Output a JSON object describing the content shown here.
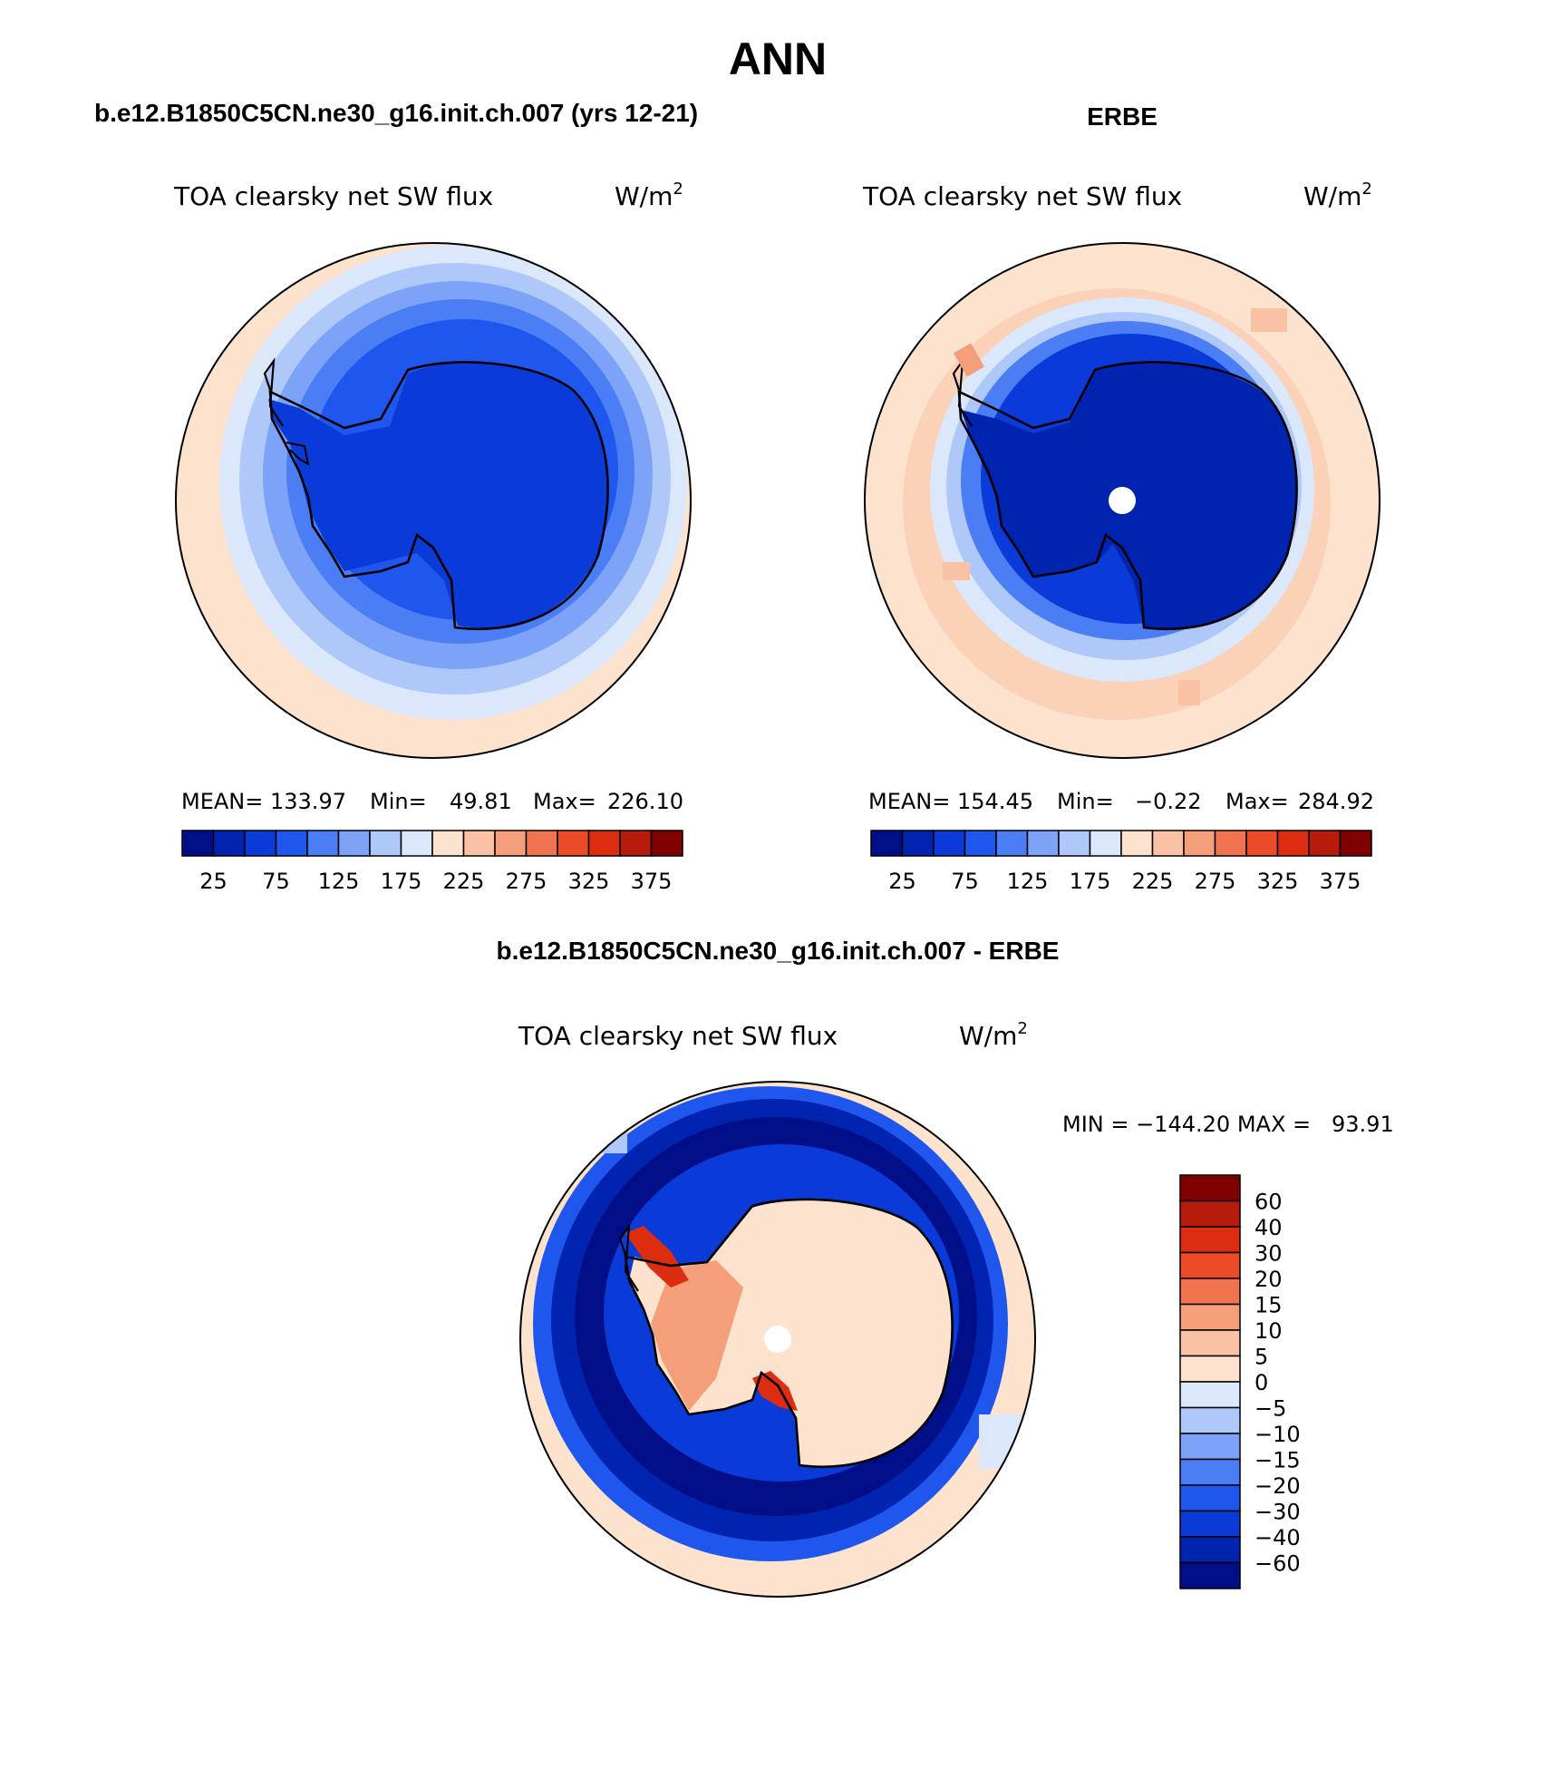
{
  "figure": {
    "season": "ANN",
    "panels": [
      {
        "id": "model",
        "case_title": "b.e12.B1850C5CN.ne30_g16.init.ch.007 (yrs 12-21)",
        "variable": "TOA clearsky net SW flux",
        "units_base": "W/m",
        "units_exp": "2",
        "mean_label": "MEAN=",
        "mean": "133.97",
        "min_label": "Min=",
        "min": "49.81",
        "max_label": "Max=",
        "max": "226.10",
        "colorbar_ticks": [
          "25",
          "75",
          "125",
          "175",
          "225",
          "275",
          "325",
          "375"
        ]
      },
      {
        "id": "obs",
        "case_title": "ERBE",
        "variable": "TOA clearsky net SW flux",
        "units_base": "W/m",
        "units_exp": "2",
        "mean_label": "MEAN=",
        "mean": "154.45",
        "min_label": "Min=",
        "min": "−0.22",
        "max_label": "Max=",
        "max": "284.92",
        "colorbar_ticks": [
          "25",
          "75",
          "125",
          "175",
          "225",
          "275",
          "325",
          "375"
        ]
      }
    ],
    "diff": {
      "title": "b.e12.B1850C5CN.ne30_g16.init.ch.007 - ERBE",
      "variable": "TOA clearsky net SW flux",
      "units_base": "W/m",
      "units_exp": "2",
      "min_max_text": "MIN = −144.20 MAX =   93.91",
      "colorbar_labels": [
        "60",
        "40",
        "30",
        "20",
        "15",
        "10",
        "5",
        "0",
        "−5",
        "−10",
        "−15",
        "−20",
        "−30",
        "−40",
        "−60"
      ]
    },
    "palettes": {
      "abs": [
        "#000f87",
        "#0024b0",
        "#0a3ad8",
        "#1f57ee",
        "#4b7ef5",
        "#7ca3f7",
        "#aec8f9",
        "#dbe7fa",
        "#fde2ce",
        "#f9c2a5",
        "#f59e7a",
        "#f0744f",
        "#eb4b26",
        "#dc2d10",
        "#b71b0a",
        "#800000"
      ],
      "diff": [
        "#000f87",
        "#0024b0",
        "#0a3ad8",
        "#1f57ee",
        "#4b7ef5",
        "#7ca3f7",
        "#aec8f9",
        "#dbe7fa",
        "#fde2ce",
        "#f9c2a5",
        "#f59e7a",
        "#f0744f",
        "#eb4b26",
        "#dc2d10",
        "#b71b0a",
        "#800000"
      ]
    }
  }
}
